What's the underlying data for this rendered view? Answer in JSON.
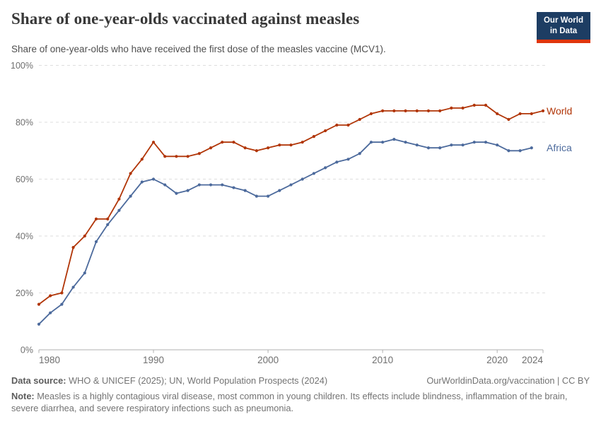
{
  "header": {
    "title": "Share of one-year-olds vaccinated against measles",
    "subtitle": "Share of one-year-olds who have received the first dose of the measles vaccine (MCV1).",
    "logo": {
      "line1": "Our World",
      "line2": "in Data",
      "bg_color": "#1d3d63",
      "accent_color": "#e0360d"
    }
  },
  "chart_data": {
    "type": "line",
    "title": "Share of one-year-olds vaccinated against measles",
    "xlabel": "",
    "ylabel": "",
    "xlim": [
      1980,
      2024
    ],
    "ylim": [
      0,
      100
    ],
    "grid": "horizontal-dashed",
    "legend_position": "line-end-labels",
    "x_ticks": {
      "values": [
        1980,
        1990,
        2000,
        2010,
        2020,
        2024
      ],
      "labels": [
        "1980",
        "1990",
        "2000",
        "2010",
        "2020",
        "2024"
      ]
    },
    "y_ticks": {
      "values": [
        0,
        20,
        40,
        60,
        80,
        100
      ],
      "labels": [
        "0%",
        "20%",
        "40%",
        "60%",
        "80%",
        "100%"
      ]
    },
    "years": [
      1980,
      1981,
      1982,
      1983,
      1984,
      1985,
      1986,
      1987,
      1988,
      1989,
      1990,
      1991,
      1992,
      1993,
      1994,
      1995,
      1996,
      1997,
      1998,
      1999,
      2000,
      2001,
      2002,
      2003,
      2004,
      2005,
      2006,
      2007,
      2008,
      2009,
      2010,
      2011,
      2012,
      2013,
      2014,
      2015,
      2016,
      2017,
      2018,
      2019,
      2020,
      2021,
      2022,
      2023,
      2024
    ],
    "series": [
      {
        "name": "World",
        "color": "#b13507",
        "start_year": 1980,
        "end_year": 2024,
        "values": [
          16,
          19,
          20,
          36,
          40,
          46,
          46,
          53,
          62,
          67,
          73,
          68,
          68,
          68,
          69,
          71,
          73,
          73,
          71,
          70,
          71,
          72,
          72,
          73,
          75,
          77,
          79,
          79,
          81,
          83,
          84,
          84,
          84,
          84,
          84,
          84,
          85,
          85,
          86,
          86,
          83,
          81,
          83,
          83,
          84
        ]
      },
      {
        "name": "Africa",
        "color": "#4c6a9c",
        "start_year": 1980,
        "end_year": 2023,
        "values": [
          9,
          13,
          16,
          22,
          27,
          38,
          44,
          49,
          54,
          59,
          60,
          58,
          55,
          56,
          58,
          58,
          58,
          57,
          56,
          54,
          54,
          56,
          58,
          60,
          62,
          64,
          66,
          67,
          69,
          73,
          73,
          74,
          73,
          72,
          71,
          71,
          72,
          72,
          73,
          73,
          72,
          70,
          70,
          71
        ]
      }
    ]
  },
  "footer": {
    "source_label": "Data source:",
    "source_text": " WHO & UNICEF (2025); UN, World Population Prospects (2024)",
    "link_text": "OurWorldinData.org/vaccination | CC BY",
    "note_label": "Note:",
    "note_text": " Measles is a highly contagious viral disease, most common in young children. Its effects include blindness, inflammation of the brain, severe diarrhea, and severe respiratory infections such as pneumonia."
  },
  "colors": {
    "grid": "#dedede",
    "axis": "#b0b0b0",
    "tick_text": "#6f6f6f"
  }
}
